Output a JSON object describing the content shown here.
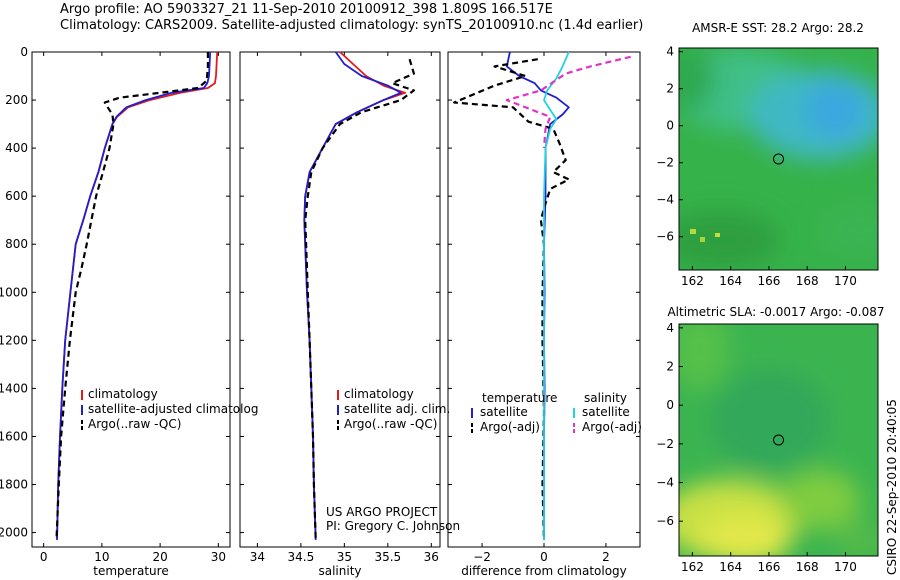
{
  "header": {
    "line1": "Argo profile: AO 5903327_21 11-Sep-2010 20100912_398 1.809S 166.517E",
    "line2": "Climatology: CARS2009. Satellite-adjusted climatology: synTS_20100910.nc (1.4d earlier)"
  },
  "side_label": "CSIRO 22-Sep-2010 20:40:05",
  "colors": {
    "clim": "#e41a1c",
    "sat": "#1f1fd0",
    "argo": "#000000",
    "sal_sat": "#22d3e6",
    "sal_argo": "#e033c8"
  },
  "chart_data": [
    {
      "type": "line",
      "id": "temperature",
      "xlabel": "temperature",
      "ylabel": "",
      "xlim": [
        -2,
        32
      ],
      "ylim": [
        2060,
        0
      ],
      "xticks": [
        0,
        10,
        20,
        30
      ],
      "yticks": [
        0,
        200,
        400,
        600,
        800,
        1000,
        1200,
        1400,
        1600,
        1800,
        2000
      ],
      "tick_labels_y": [
        "0",
        "200",
        "400",
        "600",
        "800",
        "1000",
        "1200",
        "1400",
        "1600",
        "1800",
        "2000"
      ],
      "legend": [
        "climatology",
        "satellite-adjusted climatology",
        "Argo(..raw -QC)"
      ],
      "legend_display": [
        "climatology",
        "satellite-adjusted climatolog",
        "Argo(..raw -QC)"
      ],
      "series": [
        {
          "name": "climatology",
          "color_key": "clim",
          "dash": false,
          "x": [
            29.8,
            29.7,
            29.6,
            29.4,
            28.2,
            23.5,
            18.2,
            14.5,
            12.6,
            11.8,
            10.5,
            9.4,
            8.0,
            6.8,
            5.5,
            4.6,
            3.7,
            3.2,
            2.8,
            2.5,
            2.3
          ],
          "y": [
            0,
            50,
            100,
            130,
            150,
            170,
            200,
            230,
            270,
            300,
            400,
            500,
            600,
            700,
            800,
            1000,
            1200,
            1400,
            1600,
            1800,
            2030
          ]
        },
        {
          "name": "satellite-adjusted climatology",
          "color_key": "sat",
          "dash": false,
          "x": [
            28.6,
            28.5,
            28.4,
            28.1,
            27.5,
            22.0,
            17.5,
            14.2,
            12.5,
            11.8,
            10.5,
            9.4,
            8.0,
            6.8,
            5.5,
            4.6,
            3.7,
            3.2,
            2.8,
            2.5,
            2.3
          ],
          "y": [
            0,
            50,
            100,
            130,
            150,
            170,
            200,
            230,
            270,
            300,
            400,
            500,
            600,
            700,
            800,
            1000,
            1200,
            1400,
            1600,
            1800,
            2030
          ]
        },
        {
          "name": "Argo(..raw -QC)",
          "color_key": "argo",
          "dash": true,
          "x": [
            28.2,
            28.2,
            28.0,
            26.5,
            20.0,
            13.0,
            10.5,
            11.0,
            11.8,
            12.0,
            11.3,
            10.2,
            9.0,
            8.2,
            7.4,
            6.5,
            5.5,
            4.5,
            3.7,
            3.0,
            2.6,
            2.2
          ],
          "y": [
            0,
            60,
            120,
            150,
            170,
            190,
            210,
            230,
            260,
            300,
            400,
            500,
            600,
            700,
            800,
            900,
            1000,
            1200,
            1400,
            1600,
            1800,
            2030
          ]
        }
      ]
    },
    {
      "type": "line",
      "id": "salinity",
      "xlabel": "salinity",
      "ylabel": "",
      "xlim": [
        33.8,
        36.1
      ],
      "ylim": [
        2060,
        0
      ],
      "xticks": [
        34,
        34.5,
        35,
        35.5,
        36
      ],
      "legend": [
        "climatology",
        "satellite adj. clim.",
        "Argo(..raw -QC)"
      ],
      "annotation": [
        "US ARGO PROJECT",
        "PI: Gregory C. Johnson"
      ],
      "series": [
        {
          "name": "climatology",
          "color_key": "clim",
          "dash": false,
          "x": [
            34.95,
            35.1,
            35.25,
            35.45,
            35.7,
            35.45,
            35.15,
            34.9,
            34.75,
            34.6,
            34.55,
            34.54,
            34.55,
            34.57,
            34.6,
            34.62,
            34.64,
            34.65,
            34.67
          ],
          "y": [
            0,
            50,
            100,
            140,
            170,
            200,
            250,
            300,
            400,
            500,
            600,
            700,
            800,
            1000,
            1200,
            1400,
            1600,
            1800,
            2030
          ]
        },
        {
          "name": "satellite adj. clim.",
          "color_key": "sat",
          "dash": false,
          "x": [
            34.9,
            35.0,
            35.2,
            35.5,
            35.65,
            35.45,
            35.15,
            34.9,
            34.75,
            34.6,
            34.55,
            34.54,
            34.55,
            34.57,
            34.6,
            34.62,
            34.64,
            34.65,
            34.67
          ],
          "y": [
            0,
            50,
            100,
            140,
            170,
            200,
            250,
            300,
            400,
            500,
            600,
            700,
            800,
            1000,
            1200,
            1400,
            1600,
            1800,
            2030
          ]
        },
        {
          "name": "Argo(..raw -QC)",
          "color_key": "argo",
          "dash": true,
          "x": [
            35.75,
            35.8,
            35.55,
            35.8,
            35.65,
            35.2,
            34.95,
            34.75,
            34.62,
            34.58,
            34.55,
            34.56,
            34.58,
            34.6,
            34.62,
            34.64,
            34.65,
            34.67
          ],
          "y": [
            30,
            90,
            130,
            160,
            200,
            250,
            300,
            400,
            500,
            600,
            700,
            800,
            1000,
            1200,
            1400,
            1600,
            1800,
            2030
          ]
        }
      ]
    },
    {
      "type": "line",
      "id": "difference",
      "xlabel": "difference from climatology",
      "ylabel": "",
      "xlim": [
        -3.1,
        3.1
      ],
      "ylim": [
        2060,
        0
      ],
      "xticks": [
        -2,
        0,
        2
      ],
      "legend_headers": [
        "temperature",
        "salinity"
      ],
      "legend": [
        "satellite",
        "Argo(-adj)",
        "satellite",
        "Argo(-adj)"
      ],
      "series": [
        {
          "name": "satellite",
          "group": "temperature",
          "color_key": "sat",
          "dash": false,
          "x": [
            -1.1,
            -1.2,
            -0.8,
            -0.3,
            -0.1,
            0.4,
            0.8,
            0.6,
            0.2,
            0.05,
            0.05,
            0.0,
            0.02,
            0.0,
            0.02,
            0.0,
            0.0,
            0.0
          ],
          "y": [
            0,
            60,
            100,
            130,
            160,
            190,
            230,
            260,
            300,
            400,
            600,
            800,
            1000,
            1200,
            1400,
            1600,
            1800,
            2030
          ]
        },
        {
          "name": "Argo(-adj)",
          "group": "temperature",
          "color_key": "argo",
          "dash": true,
          "x": [
            -0.2,
            -1.6,
            -0.6,
            -1.6,
            -2.9,
            -1.0,
            -0.5,
            0.3,
            0.5,
            0.7,
            0.3,
            0.8,
            0.2,
            0.0,
            -0.1,
            0.0,
            -0.05,
            -0.05,
            0.0,
            -0.05,
            0.0
          ],
          "y": [
            30,
            60,
            100,
            140,
            210,
            230,
            290,
            320,
            380,
            450,
            500,
            530,
            570,
            650,
            700,
            800,
            1000,
            1200,
            1500,
            1800,
            2030
          ]
        },
        {
          "name": "satellite",
          "group": "salinity",
          "color_key": "sal_sat",
          "dash": false,
          "x": [
            0.8,
            0.6,
            0.4,
            0.1,
            0.0,
            0.2,
            0.4,
            0.2,
            0.05,
            0.0,
            0.0,
            0.0,
            0.0,
            0.0
          ],
          "y": [
            0,
            60,
            110,
            160,
            200,
            240,
            280,
            320,
            400,
            600,
            1000,
            1400,
            1800,
            2030
          ]
        },
        {
          "name": "Argo(-adj)",
          "group": "salinity",
          "color_key": "sal_argo",
          "dash": true,
          "x": [
            2.8,
            1.5,
            0.7,
            -0.1,
            -1.2,
            0.2,
            0.05,
            0.0
          ],
          "y": [
            20,
            60,
            90,
            160,
            200,
            270,
            320,
            400
          ]
        }
      ]
    },
    {
      "type": "heatmap",
      "id": "sst_map",
      "title": "AMSR-E SST: 28.2  Argo: 28.2",
      "xlim": [
        161.3,
        171.7
      ],
      "ylim": [
        -7.8,
        4.2
      ],
      "xticks": [
        162,
        164,
        166,
        168,
        170
      ],
      "yticks": [
        4,
        2,
        0,
        -2,
        -4,
        -6
      ],
      "marker": {
        "lon": 166.5,
        "lat": -1.8
      }
    },
    {
      "type": "heatmap",
      "id": "sla_map",
      "title": "Altimetric SLA: -0.0017  Argo: -0.087",
      "xlim": [
        161.3,
        171.7
      ],
      "ylim": [
        -7.8,
        4.2
      ],
      "xticks": [
        162,
        164,
        166,
        168,
        170
      ],
      "yticks": [
        4,
        2,
        0,
        -2,
        -4,
        -6
      ],
      "marker": {
        "lon": 166.5,
        "lat": -1.8
      }
    }
  ]
}
